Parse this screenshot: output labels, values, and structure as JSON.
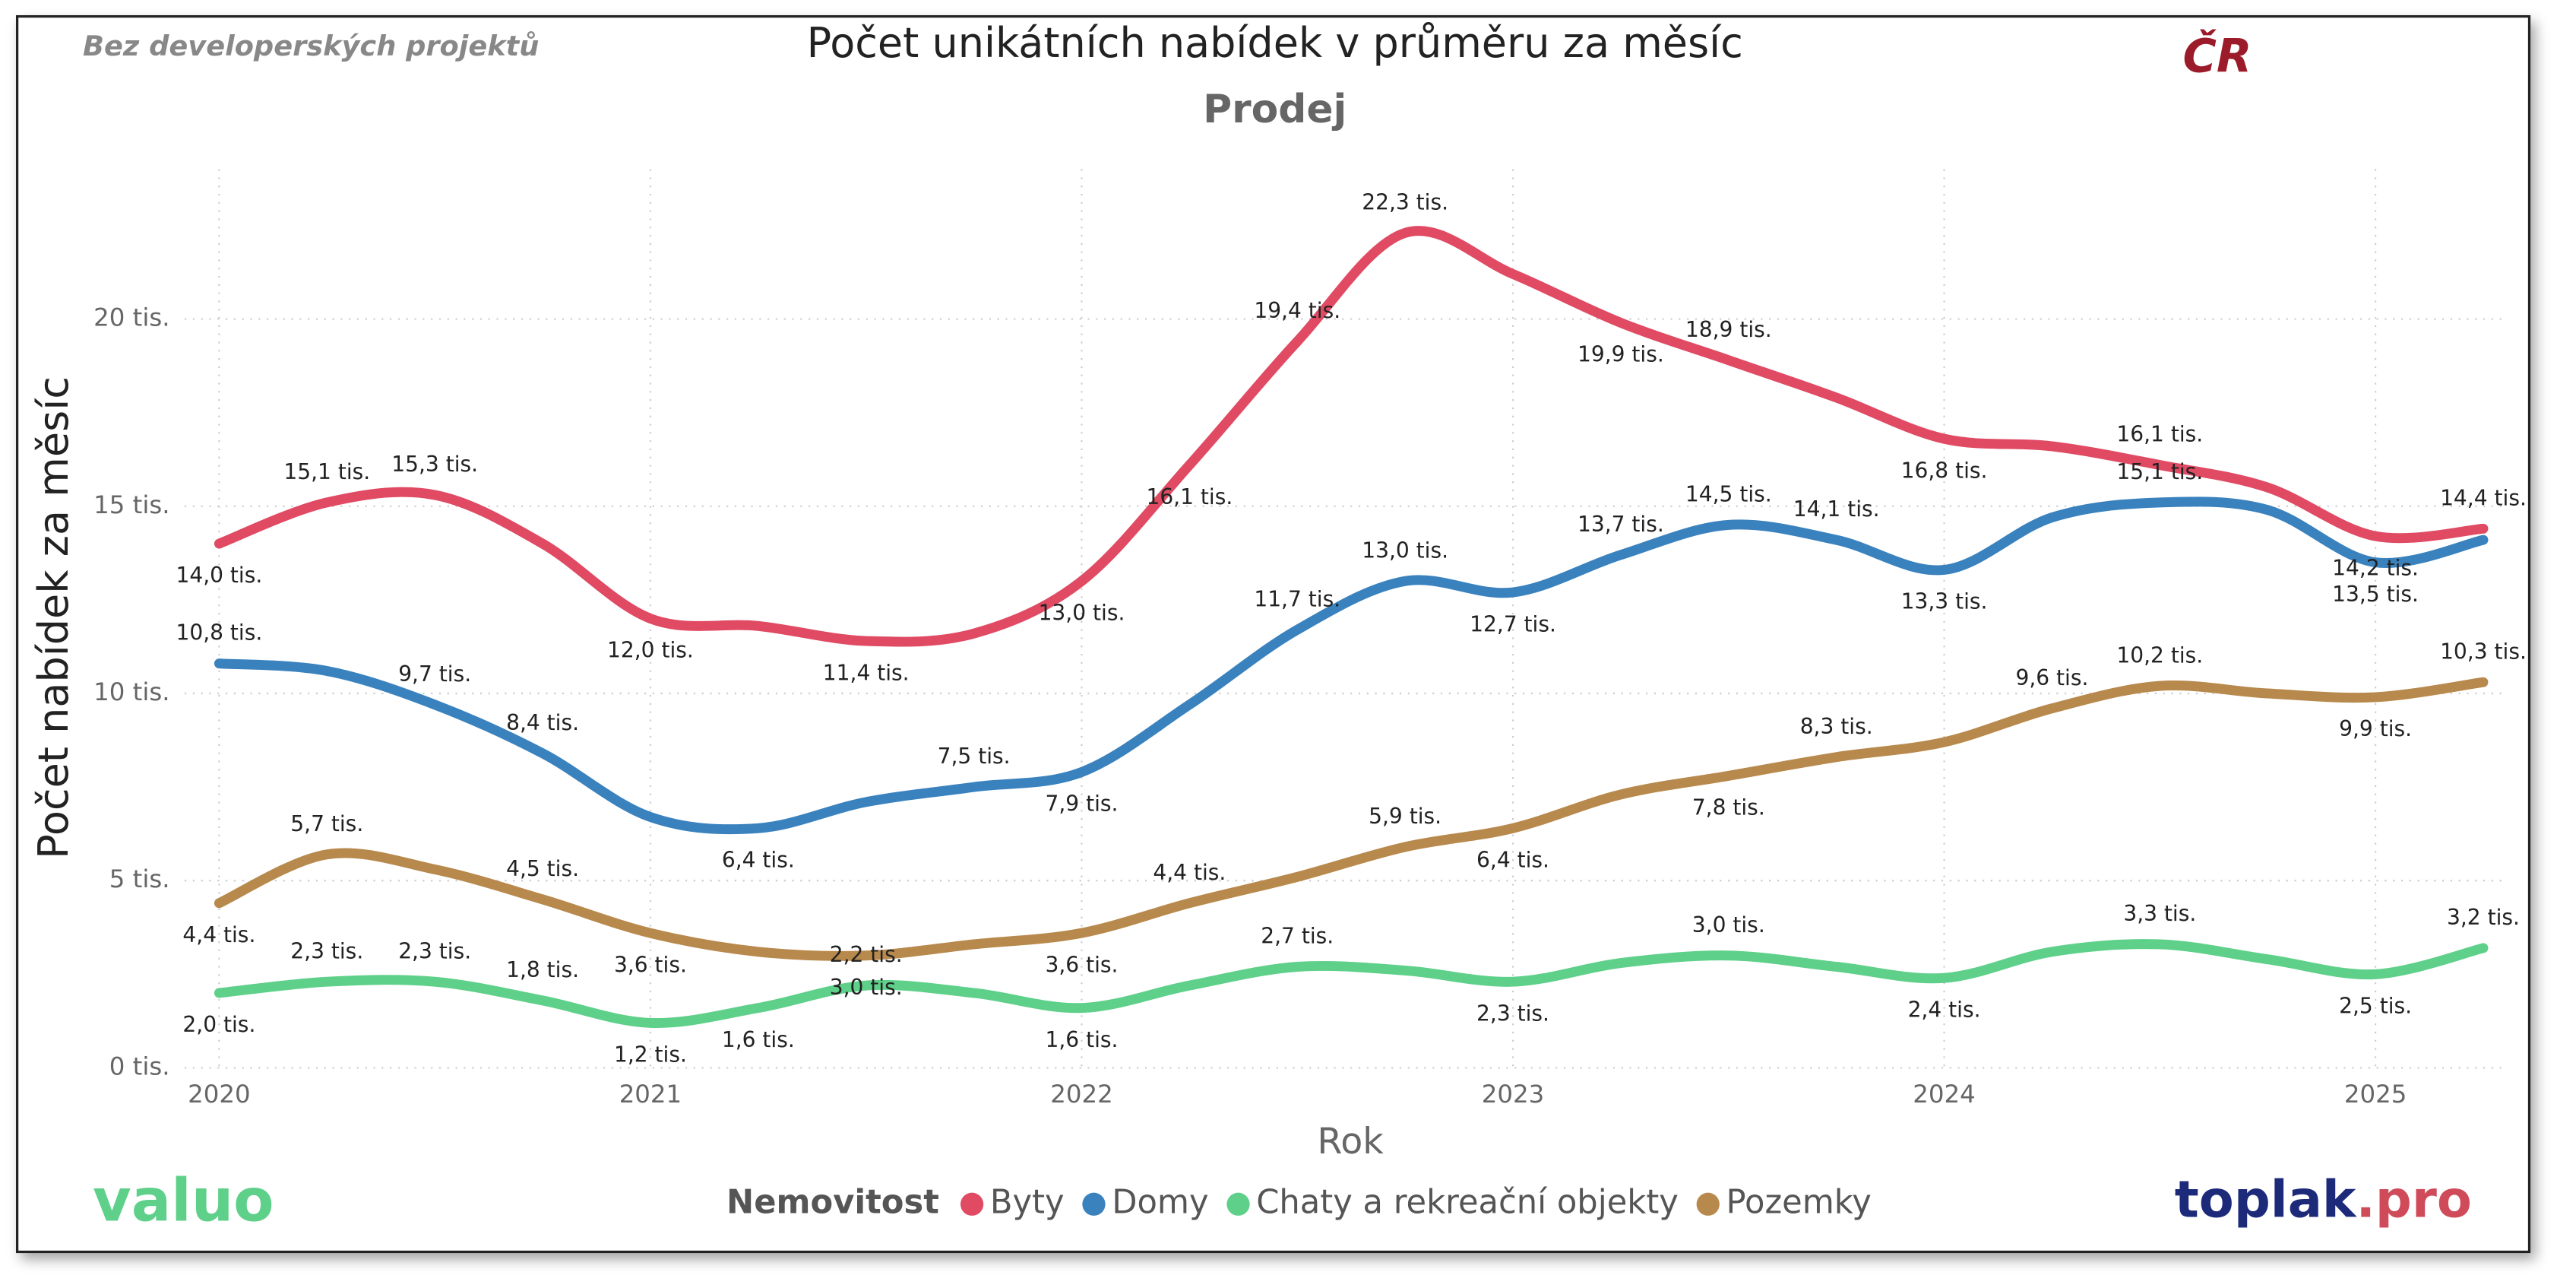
{
  "chart_data": {
    "type": "line",
    "note_left": "Bez developerských projektů",
    "title": "Počet unikátních nabídek v průměru za měsíc",
    "subtitle": "Prodej",
    "region": "ČR",
    "y_label": "Počet nabídek za měsíc",
    "x_label": "Rok",
    "legend_title": "Nemovitost",
    "x": [
      2020,
      2020.25,
      2020.5,
      2020.75,
      2021,
      2021.25,
      2021.5,
      2021.75,
      2022,
      2022.25,
      2022.5,
      2022.75,
      2023,
      2023.25,
      2023.5,
      2023.75,
      2024,
      2024.25,
      2024.5,
      2024.75,
      2025,
      2025.25
    ],
    "xlim": [
      2019.92,
      2025.33
    ],
    "xticks": [
      2020,
      2021,
      2022,
      2023,
      2024,
      2025
    ],
    "ylim": [
      0,
      24
    ],
    "yticks": [
      {
        "value": 0,
        "label": "0 tis."
      },
      {
        "value": 5,
        "label": "5 tis."
      },
      {
        "value": 10,
        "label": "10 tis."
      },
      {
        "value": 15,
        "label": "15 tis."
      },
      {
        "value": 20,
        "label": "20 tis."
      }
    ],
    "grid": true,
    "series": [
      {
        "name": "Byty",
        "color": "#e04a63",
        "values": [
          14.0,
          15.1,
          15.3,
          14.0,
          12.0,
          11.8,
          11.4,
          11.6,
          13.0,
          16.1,
          19.4,
          22.3,
          21.2,
          19.9,
          18.9,
          17.9,
          16.8,
          16.6,
          16.1,
          15.5,
          14.2,
          14.4
        ],
        "value_labels": [
          "14,0 tis.",
          "15,1 tis.",
          "15,3 tis.",
          null,
          "12,0 tis.",
          null,
          "11,4 tis.",
          null,
          "13,0 tis.",
          "16,1 tis.",
          "19,4 tis.",
          "22,3 tis.",
          null,
          "19,9 tis.",
          "18,9 tis.",
          null,
          "16,8 tis.",
          null,
          "16,1 tis.",
          null,
          "14,2 tis.",
          "14,4 tis."
        ]
      },
      {
        "name": "Domy",
        "color": "#3a82be",
        "values": [
          10.8,
          10.6,
          9.7,
          8.4,
          6.7,
          6.4,
          7.1,
          7.5,
          7.9,
          9.7,
          11.7,
          13.0,
          12.7,
          13.7,
          14.5,
          14.1,
          13.3,
          14.7,
          15.1,
          14.9,
          13.5,
          14.1
        ],
        "value_labels": [
          "10,8 tis.",
          null,
          "9,7 tis.",
          "8,4 tis.",
          null,
          "6,4 tis.",
          null,
          "7,5 tis.",
          "7,9 tis.",
          null,
          "11,7 tis.",
          "13,0 tis.",
          "12,7 tis.",
          "13,7 tis.",
          "14,5 tis.",
          "14,1 tis.",
          "13,3 tis.",
          null,
          "15,1 tis.",
          null,
          "13,5 tis.",
          null
        ]
      },
      {
        "name": "Chaty a rekreační objekty",
        "color": "#5fd08a",
        "values": [
          2.0,
          2.3,
          2.3,
          1.8,
          1.2,
          1.6,
          2.2,
          2.0,
          1.6,
          2.2,
          2.7,
          2.6,
          2.3,
          2.8,
          3.0,
          2.7,
          2.4,
          3.1,
          3.3,
          2.9,
          2.5,
          3.2
        ],
        "value_labels": [
          "2,0 tis.",
          "2,3 tis.",
          "2,3 tis.",
          "1,8 tis.",
          "1,2 tis.",
          "1,6 tis.",
          "2,2 tis.",
          null,
          "1,6 tis.",
          null,
          "2,7 tis.",
          null,
          "2,3 tis.",
          null,
          "3,0 tis.",
          null,
          "2,4 tis.",
          null,
          "3,3 tis.",
          null,
          "2,5 tis.",
          "3,2 tis."
        ]
      },
      {
        "name": "Pozemky",
        "color": "#b8894c",
        "values": [
          4.4,
          5.7,
          5.3,
          4.5,
          3.6,
          3.1,
          3.0,
          3.3,
          3.6,
          4.4,
          5.1,
          5.9,
          6.4,
          7.3,
          7.8,
          8.3,
          8.7,
          9.6,
          10.2,
          10.0,
          9.9,
          10.3
        ],
        "value_labels": [
          "4,4 tis.",
          "5,7 tis.",
          null,
          "4,5 tis.",
          "3,6 tis.",
          null,
          "3,0 tis.",
          null,
          "3,6 tis.",
          "4,4 tis.",
          null,
          "5,9 tis.",
          "6,4 tis.",
          null,
          "7,8 tis.",
          "8,3 tis.",
          null,
          "9,6 tis.",
          "10,2 tis.",
          null,
          "9,9 tis.",
          "10,3 tis."
        ]
      }
    ]
  },
  "branding": {
    "left": "valuo",
    "right_main": "toplak",
    "right_suffix": ".pro"
  }
}
